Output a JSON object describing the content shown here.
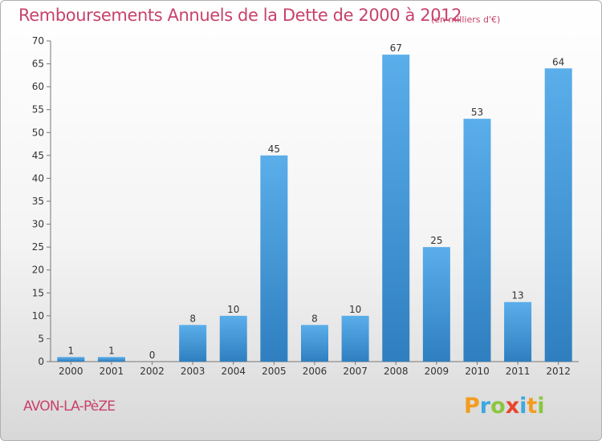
{
  "chart_data": {
    "type": "bar",
    "title": "Remboursements Annuels de la Dette de 2000 à 2012",
    "unit_note": "(en milliers d'€)",
    "categories": [
      "2000",
      "2001",
      "2002",
      "2003",
      "2004",
      "2005",
      "2006",
      "2007",
      "2008",
      "2009",
      "2010",
      "2011",
      "2012"
    ],
    "values": [
      1,
      1,
      0,
      8,
      10,
      45,
      8,
      10,
      67,
      25,
      53,
      13,
      64
    ],
    "value_labels": [
      "1",
      "1",
      "0",
      "8",
      "10",
      "45",
      "8",
      "10",
      "67",
      "25",
      "53",
      "13",
      "64"
    ],
    "ylim": [
      0,
      70
    ],
    "yticks": [
      0,
      5,
      10,
      15,
      20,
      25,
      30,
      35,
      40,
      45,
      50,
      55,
      60,
      65,
      70
    ],
    "grid": false,
    "bar_color_top": "#5aaeea",
    "bar_color_bottom": "#2f7fc0",
    "text_color": "#333333"
  },
  "footer": {
    "commune_name": "AVON-LA-PèZE",
    "accent_color": "#c8426b"
  },
  "logo": {
    "letters": [
      "P",
      "r",
      "o",
      "x",
      "i",
      "t",
      "i"
    ],
    "colors": [
      "#f39c1e",
      "#3aa9e0",
      "#8bc63f",
      "#e8452c",
      "#3aa9e0",
      "#f39c1e",
      "#8bc63f"
    ]
  }
}
